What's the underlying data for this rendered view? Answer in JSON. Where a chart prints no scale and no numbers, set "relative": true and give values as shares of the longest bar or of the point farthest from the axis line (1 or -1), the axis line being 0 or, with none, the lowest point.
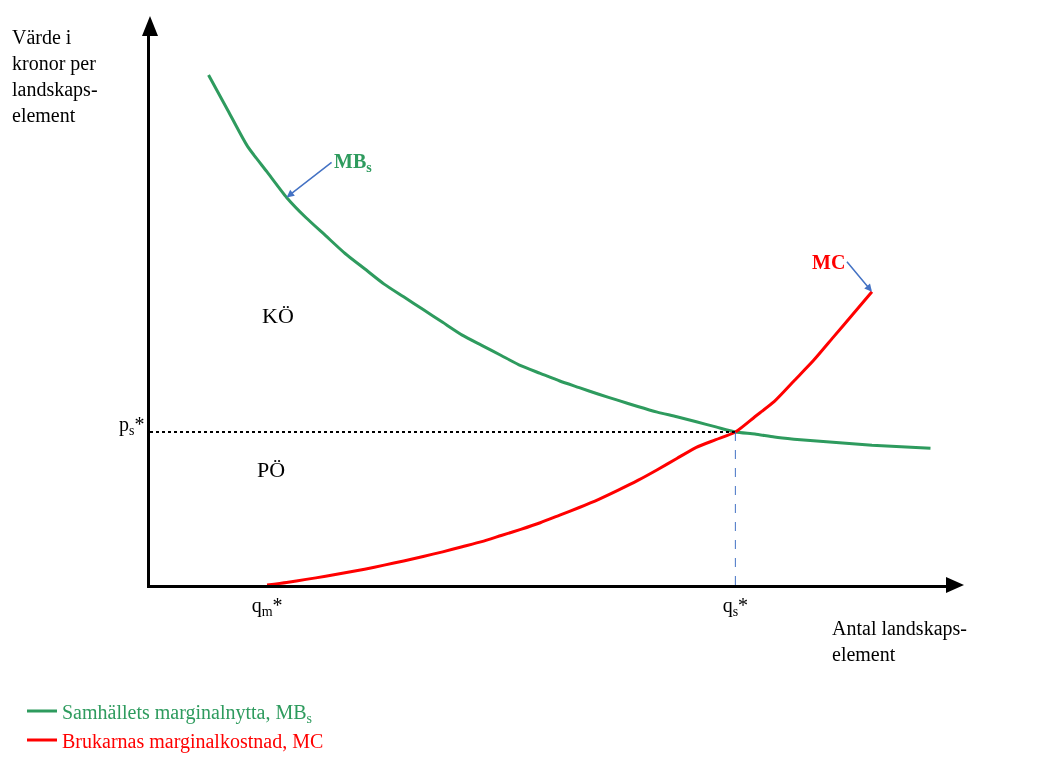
{
  "chart_data": {
    "type": "line",
    "relative": true,
    "xlabel": "Antal landskaps-\nelement",
    "ylabel": "Värde i\nkronor per\nlandskaps-\nelement",
    "categories": [
      null,
      null,
      null,
      null,
      null,
      null,
      "q$_{m}$*",
      null,
      null,
      null,
      null,
      null,
      null,
      null,
      null,
      null,
      null,
      null,
      null,
      null,
      null,
      null,
      null,
      null,
      null,
      null,
      null,
      null,
      null,
      null,
      "q$_{s}$*",
      null,
      null,
      null,
      null,
      null,
      null,
      null,
      null,
      null,
      null
    ],
    "series": [
      {
        "name": "Samhällets marginalnytta, MB$_{s}$",
        "color": "#2e9b5e",
        "values": [
          null,
          null,
          null,
          1,
          0.93,
          0.86,
          0.81,
          0.76,
          0.72,
          0.685,
          0.65,
          0.62,
          0.59,
          0.565,
          0.54,
          0.515,
          0.49,
          0.47,
          0.45,
          0.43,
          0.415,
          0.4,
          0.387,
          0.374,
          0.362,
          0.35,
          0.339,
          0.33,
          0.32,
          0.31,
          0.3,
          0.296,
          0.29,
          0.286,
          0.283,
          0.28,
          0.277,
          0.274,
          0.272,
          0.27,
          0.268
        ]
      },
      {
        "name": "Brukarnas marginalkostnad, MC",
        "color": "#ff0000",
        "values": [
          null,
          null,
          null,
          null,
          null,
          null,
          0,
          0.005,
          0.011,
          0.017,
          0.024,
          0.031,
          0.039,
          0.047,
          0.056,
          0.065,
          0.075,
          0.085,
          0.097,
          0.109,
          0.122,
          0.137,
          0.152,
          0.168,
          0.186,
          0.205,
          0.226,
          0.248,
          0.27,
          0.285,
          0.3,
          0.33,
          0.36,
          0.4,
          0.44,
          0.485,
          0.53,
          0.575,
          null,
          null,
          null
        ]
      }
    ],
    "ref_lines": [
      {
        "axis": "y",
        "value": 0.3,
        "label": "p$_{s}$*",
        "color": "#000000",
        "line_style": "dotted"
      },
      {
        "axis": "x",
        "value": "q$_{s}$*",
        "color": "#4472c4",
        "line_style": "dashed"
      }
    ],
    "annotations": [
      "MB$_{s}$",
      "MC",
      "KÖ",
      "PÖ"
    ],
    "legend": "bottom",
    "grid": false,
    "marker": "none",
    "line_style": "solid"
  }
}
